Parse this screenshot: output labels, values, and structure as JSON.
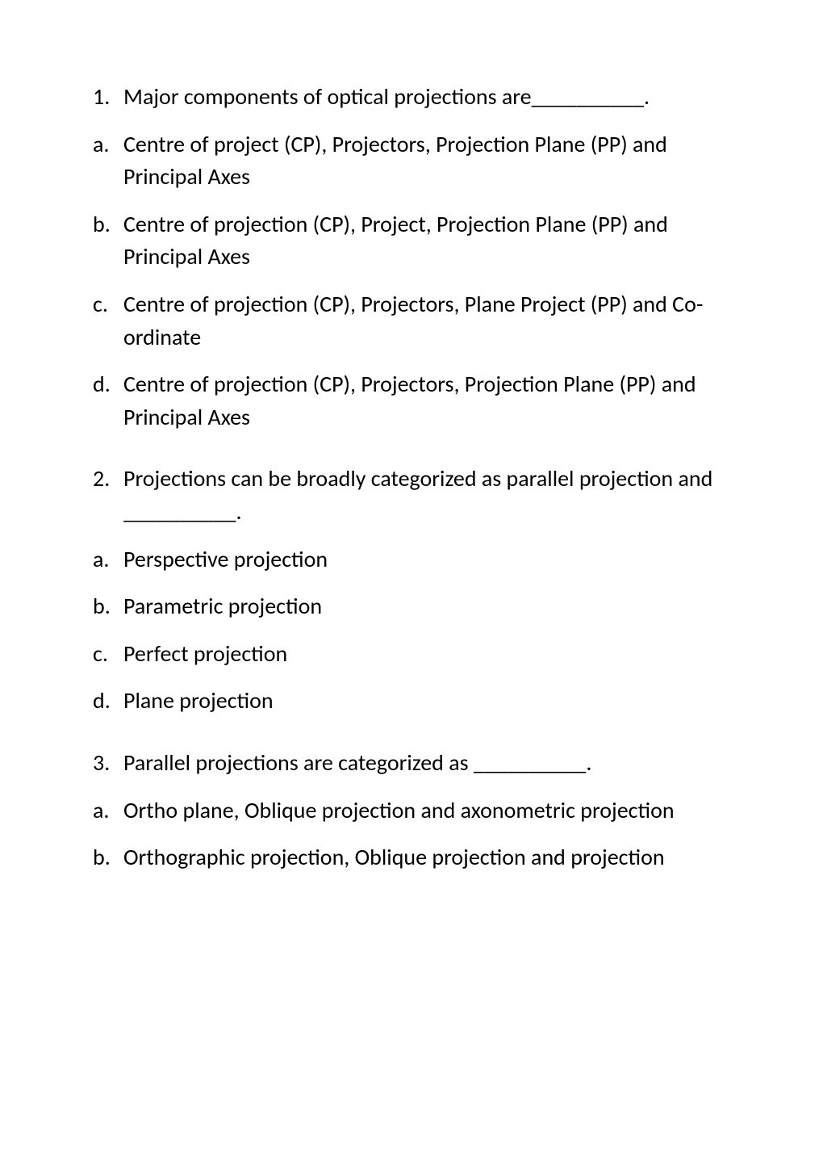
{
  "q1": {
    "number": "1.",
    "text": "Major components of optical projections are__________.",
    "options": {
      "a": {
        "marker": "a.",
        "text": "Centre of project (CP), Projectors, Projection Plane (PP) and Principal Axes"
      },
      "b": {
        "marker": "b.",
        "text": "Centre of projection (CP), Project, Projection Plane (PP) and Principal Axes"
      },
      "c": {
        "marker": "c.",
        "text": "Centre of projection (CP), Projectors, Plane Project (PP) and Co-ordinate"
      },
      "d": {
        "marker": "d.",
        "text": "Centre of projection (CP), Projectors, Projection Plane (PP) and Principal Axes"
      }
    }
  },
  "q2": {
    "number": "2.",
    "text": "Projections can be broadly categorized as parallel projection and __________.",
    "options": {
      "a": {
        "marker": "a.",
        "text": "Perspective projection"
      },
      "b": {
        "marker": "b.",
        "text": "Parametric projection"
      },
      "c": {
        "marker": "c.",
        "text": "Perfect projection"
      },
      "d": {
        "marker": "d.",
        "text": "Plane projection"
      }
    }
  },
  "q3": {
    "number": "3.",
    "text": "Parallel projections are categorized as __________.",
    "options": {
      "a": {
        "marker": "a.",
        "text": "Ortho plane, Oblique projection and axonometric projection"
      },
      "b": {
        "marker": "b.",
        "text": "Orthographic projection, Oblique projection and projection"
      }
    }
  }
}
